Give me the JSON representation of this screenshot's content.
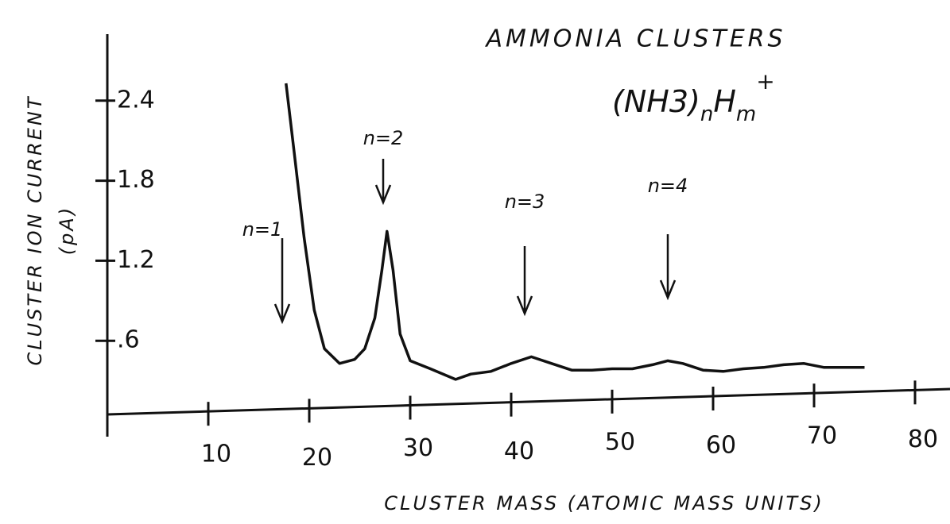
{
  "chart_data": {
    "type": "line",
    "title": "AMMONIA CLUSTERS",
    "formula": [
      "(NH3)",
      "n",
      "H",
      "m",
      "+"
    ],
    "x_label": "CLUSTER MASS (ATOMIC MASS UNITS)",
    "y_label": [
      "CLUSTER ION CURRENT",
      "(pA)"
    ],
    "xlim": [
      0,
      83
    ],
    "ylim": [
      0,
      2.9
    ],
    "xticks": [
      10,
      20,
      30,
      40,
      50,
      60,
      70,
      80
    ],
    "yticks": [
      {
        "value": 0.6,
        "label": ".6"
      },
      1.2,
      1.8,
      2.4
    ],
    "color": "#111111",
    "x": [
      17.7,
      18.5,
      19.5,
      20.5,
      21.5,
      23,
      24.5,
      25.5,
      26.5,
      27.2,
      27.7,
      28.3,
      29,
      30,
      32,
      34.5,
      36,
      38,
      40,
      42,
      44,
      46,
      48,
      50,
      52,
      54,
      55.5,
      57,
      59,
      61,
      63,
      65,
      67,
      69,
      71,
      73,
      75
    ],
    "values": [
      2.53,
      2.02,
      1.37,
      0.83,
      0.54,
      0.43,
      0.46,
      0.54,
      0.77,
      1.13,
      1.42,
      1.13,
      0.65,
      0.45,
      0.39,
      0.31,
      0.35,
      0.37,
      0.43,
      0.48,
      0.43,
      0.38,
      0.38,
      0.39,
      0.39,
      0.42,
      0.45,
      0.43,
      0.38,
      0.37,
      0.39,
      0.4,
      0.42,
      0.43,
      0.4,
      0.4,
      0.4
    ],
    "annotations": [
      "n=1",
      "n=2",
      "n=3",
      "n=4"
    ]
  }
}
